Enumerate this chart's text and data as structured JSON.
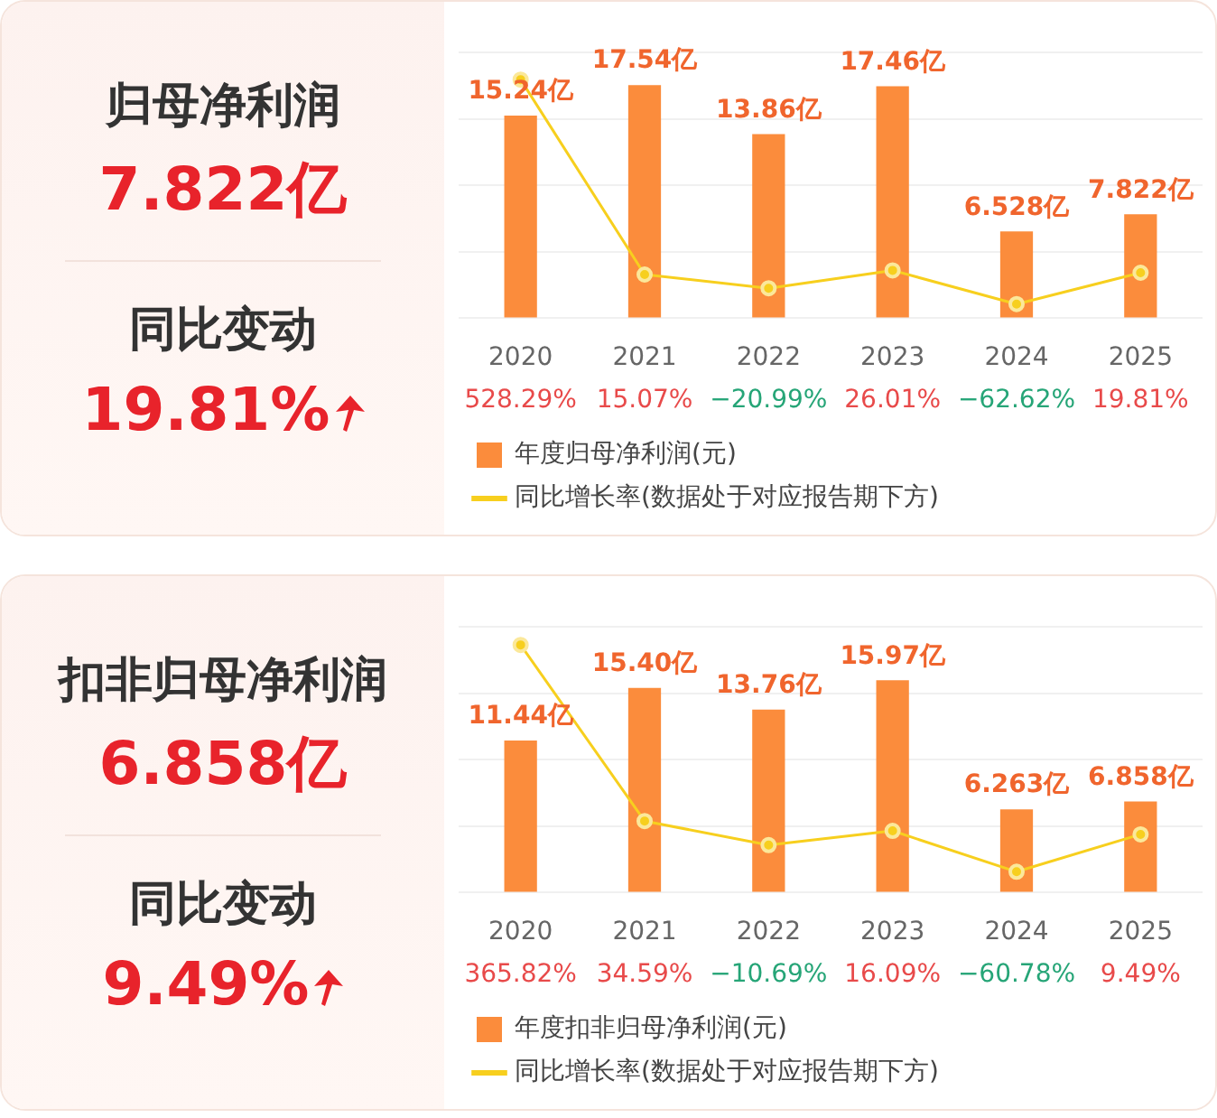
{
  "chart_data": [
    {
      "type": "other",
      "title": "归母净利润",
      "annotations": [
        "7.822亿",
        "同比变动",
        "19.81%"
      ]
    },
    {
      "type": "bar",
      "categories": [
        "2020",
        "2021",
        "2022",
        "2023",
        "2024",
        "2025"
      ],
      "ylim": [
        0,
        20
      ],
      "yticks": [
        {
          "value": 0,
          "label": null
        },
        {
          "value": 5,
          "label": null
        },
        {
          "value": 10,
          "label": null
        },
        {
          "value": 15,
          "label": null
        },
        {
          "value": 20,
          "label": null
        }
      ],
      "y2lim": [
        -100,
        600
      ],
      "grid": "y",
      "tick_labels": "x",
      "legend": "bottom",
      "marker": "circle",
      "series": [
        {
          "name": "年度归母净利润(元)",
          "color": "#fb8c3c",
          "values": [
            15.24,
            17.54,
            13.86,
            17.46,
            6.528,
            7.822
          ],
          "value_labels": [
            "15.24亿",
            "17.54亿",
            "13.86亿",
            "17.46亿",
            "6.528亿",
            "7.822亿"
          ]
        },
        {
          "name": "同比增长率(数据处于对应报告期下方)",
          "type": "line",
          "axis": "y2",
          "color": "#f7cf1e",
          "values": [
            528.29,
            15.07,
            -20.99,
            26.01,
            -62.62,
            19.81
          ],
          "value_labels": [
            "528.29%",
            "15.07%",
            "−20.99%",
            "26.01%",
            "−62.62%",
            "19.81%"
          ]
        }
      ]
    },
    {
      "type": "other",
      "title": "扣非归母净利润",
      "annotations": [
        "6.858亿",
        "同比变动",
        "9.49%"
      ]
    },
    {
      "type": "bar",
      "categories": [
        "2020",
        "2021",
        "2022",
        "2023",
        "2024",
        "2025"
      ],
      "ylim": [
        0,
        20
      ],
      "yticks": [
        {
          "value": 0,
          "label": null
        },
        {
          "value": 5,
          "label": null
        },
        {
          "value": 10,
          "label": null
        },
        {
          "value": 15,
          "label": null
        },
        {
          "value": 20,
          "label": null
        }
      ],
      "y2lim": [
        -100,
        400
      ],
      "grid": "y",
      "tick_labels": "x",
      "legend": "bottom",
      "marker": "circle",
      "series": [
        {
          "name": "年度扣非归母净利润(元)",
          "color": "#fb8c3c",
          "values": [
            11.44,
            15.4,
            13.76,
            15.97,
            6.263,
            6.858
          ],
          "value_labels": [
            "11.44亿",
            "15.40亿",
            "13.76亿",
            "15.97亿",
            "6.263亿",
            "6.858亿"
          ]
        },
        {
          "name": "同比增长率(数据处于对应报告期下方)",
          "type": "line",
          "axis": "y2",
          "color": "#f7cf1e",
          "values": [
            365.82,
            34.59,
            -10.69,
            16.09,
            -60.78,
            9.49
          ],
          "value_labels": [
            "365.82%",
            "34.59%",
            "−10.69%",
            "16.09%",
            "−60.78%",
            "9.49%"
          ]
        }
      ]
    }
  ]
}
